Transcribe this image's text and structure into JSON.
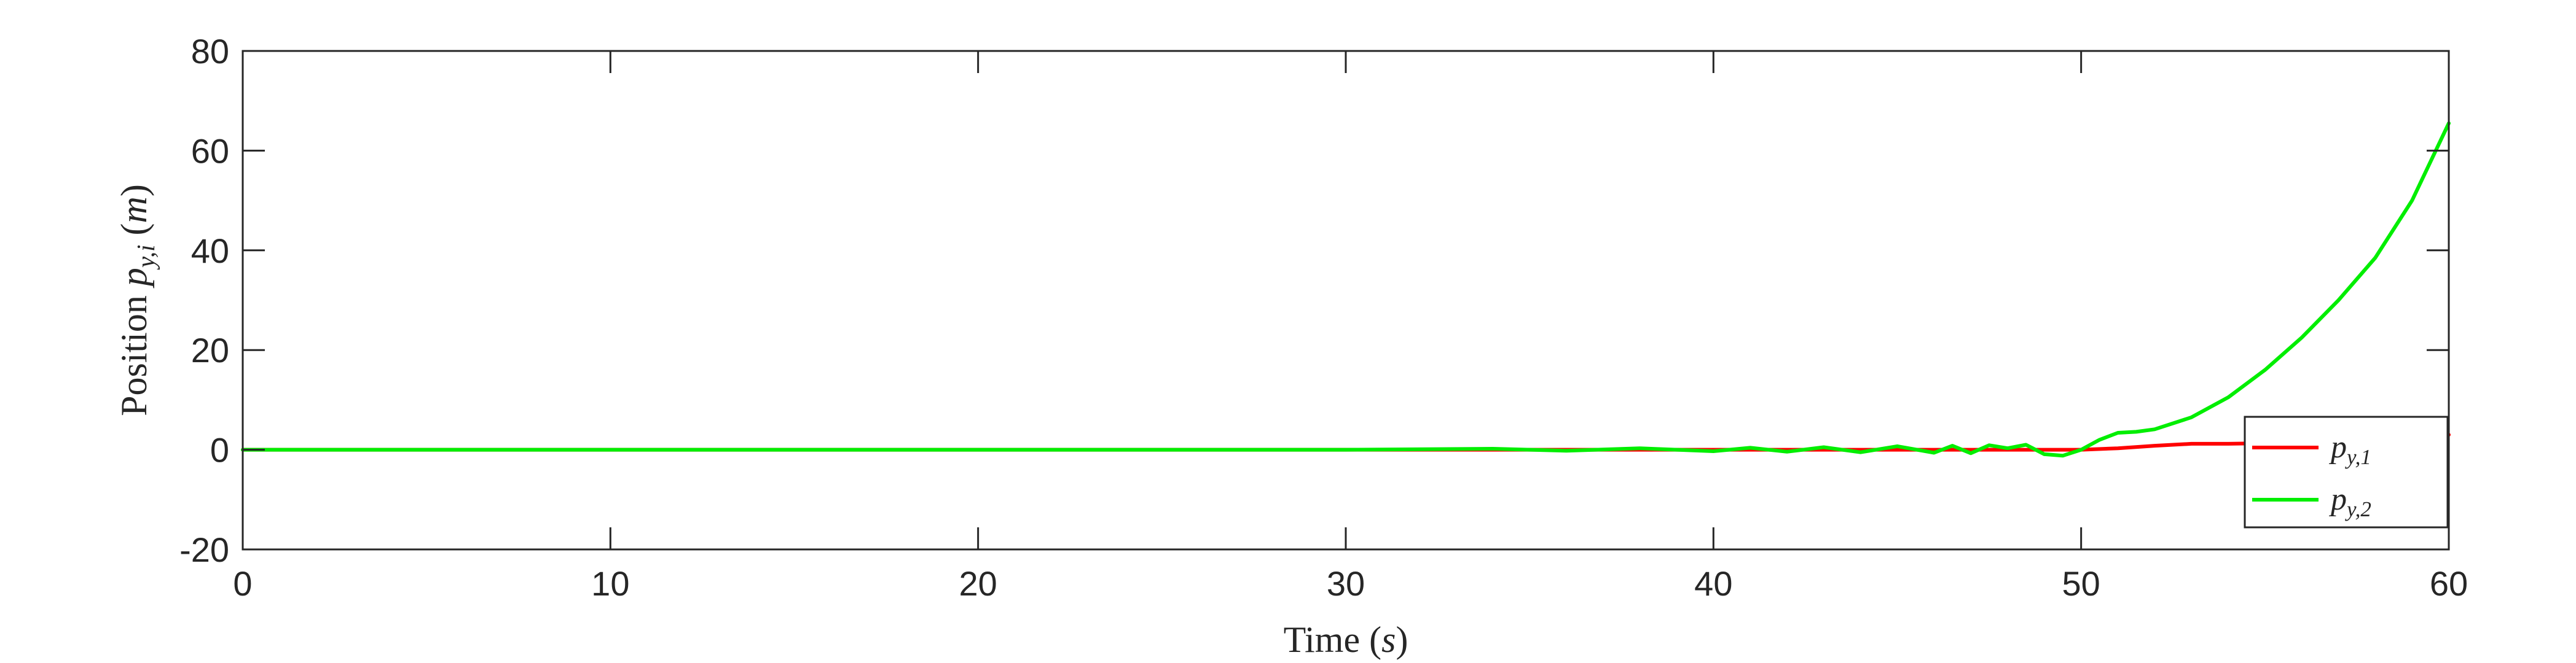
{
  "chart_data": {
    "type": "line",
    "xlabel": "Time (s)",
    "ylabel": "Position p_{y,i} (m)",
    "xlim": [
      0,
      60
    ],
    "ylim": [
      -20,
      80
    ],
    "xticks": [
      0,
      10,
      20,
      30,
      40,
      50,
      60
    ],
    "yticks": [
      -20,
      0,
      20,
      40,
      60,
      80
    ],
    "xtick_labels": [
      "0",
      "10",
      "20",
      "30",
      "40",
      "50",
      "60"
    ],
    "ytick_labels": [
      "-20",
      "0",
      "20",
      "40",
      "60",
      "80"
    ],
    "grid": false,
    "legend_position": "bottom-right",
    "series": [
      {
        "name": "p_{y,1}",
        "color": "#ff0000",
        "x": [
          0,
          10,
          20,
          30,
          35,
          40,
          42,
          44,
          46,
          48,
          49,
          50,
          51,
          52,
          53,
          54,
          55,
          56,
          57,
          58,
          59,
          60
        ],
        "y": [
          0,
          0,
          0,
          0,
          0,
          0,
          0,
          0,
          0,
          0,
          0,
          0,
          0.3,
          0.8,
          1.2,
          1.2,
          1.3,
          1.4,
          1.6,
          1.9,
          2.3,
          3.0
        ]
      },
      {
        "name": "p_{y,2}",
        "color": "#00ee00",
        "x": [
          0,
          10,
          20,
          30,
          34,
          36,
          38,
          40,
          41,
          42,
          43,
          44,
          45,
          46,
          46.5,
          47,
          47.5,
          48,
          48.5,
          49,
          49.5,
          50,
          50.5,
          51,
          51.5,
          52,
          53,
          54,
          55,
          56,
          57,
          58,
          59,
          60
        ],
        "y": [
          0,
          0,
          0,
          0,
          0.2,
          -0.2,
          0.3,
          -0.3,
          0.4,
          -0.4,
          0.5,
          -0.5,
          0.7,
          -0.6,
          0.8,
          -0.7,
          0.9,
          0.3,
          1.0,
          -0.9,
          -1.2,
          0.0,
          2.0,
          3.4,
          3.6,
          4.1,
          6.5,
          10.5,
          16.0,
          22.5,
          30.0,
          38.5,
          50.0,
          65.5
        ]
      }
    ]
  }
}
